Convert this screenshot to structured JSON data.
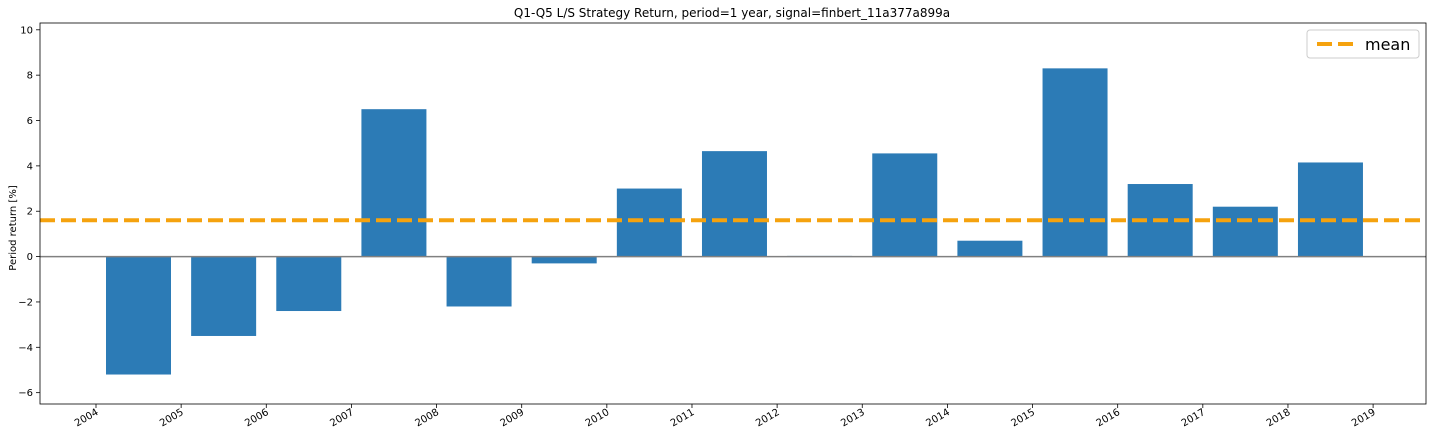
{
  "chart_data": {
    "type": "bar",
    "title": "Q1-Q5 L/S Strategy Return, period=1 year, signal=finbert_11a377a899a",
    "xlabel": "",
    "ylabel": "Period return [%]",
    "x_tick_labels": [
      "2004",
      "2005",
      "2006",
      "2007",
      "2008",
      "2009",
      "2010",
      "2011",
      "2012",
      "2013",
      "2014",
      "2015",
      "2016",
      "2017",
      "2018",
      "2019"
    ],
    "categories": [
      "2004",
      "2005",
      "2006",
      "2007",
      "2008",
      "2009",
      "2010",
      "2011",
      "2012",
      "2013",
      "2014",
      "2015",
      "2016",
      "2017",
      "2018"
    ],
    "values": [
      -5.2,
      -3.5,
      -2.4,
      6.5,
      -2.2,
      -0.3,
      3.0,
      4.65,
      0.03,
      4.55,
      0.7,
      8.3,
      3.2,
      2.2,
      4.15
    ],
    "mean": 1.6,
    "ylim": [
      -6.5,
      10.3
    ],
    "yticks": [
      -6,
      -4,
      -2,
      0,
      2,
      4,
      6,
      8,
      10
    ],
    "grid": false,
    "legend": {
      "entries": [
        "mean"
      ],
      "placement": "top-right"
    },
    "colors": {
      "bar": "#2c7bb6",
      "mean": "#f5a20e",
      "zero_line": "#808080"
    }
  }
}
